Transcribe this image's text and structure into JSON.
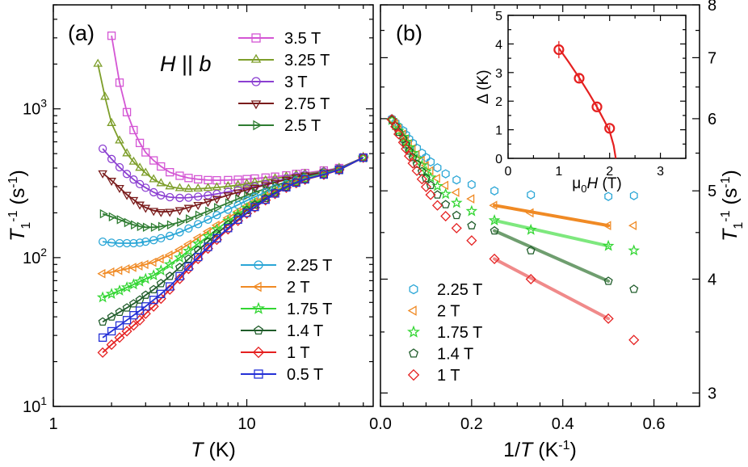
{
  "chart_data": [
    {
      "panel_label": "(a)",
      "type": "line",
      "annotation": "H || b",
      "xlabel": "T (K)",
      "ylabel": "T1^-1 (s^-1)",
      "x_scale": "log",
      "y_scale": "log",
      "xlim": [
        1,
        45
      ],
      "ylim": [
        10,
        5000
      ],
      "x_ticklabels": [
        "1",
        "10"
      ],
      "y_ticklabels": [
        "10^1",
        "10^2",
        "10^3"
      ],
      "series": [
        {
          "name": "3.5 T",
          "color": "#d456d4",
          "marker": "square",
          "x": [
            2.0,
            2.2,
            2.4,
            2.6,
            2.8,
            3.0,
            3.3,
            3.6,
            4.0,
            4.5,
            5.0,
            5.6,
            6.3,
            7.0,
            8.0,
            9.0,
            10,
            11,
            12.5,
            14,
            16,
            18,
            20,
            25,
            30,
            40
          ],
          "y": [
            3100,
            1500,
            950,
            720,
            590,
            510,
            450,
            410,
            375,
            355,
            343,
            336,
            332,
            331,
            332,
            334,
            337,
            340,
            345,
            350,
            357,
            365,
            370,
            385,
            400,
            470
          ]
        },
        {
          "name": "3.25 T",
          "color": "#7d9e2a",
          "marker": "triangle-up",
          "x": [
            1.7,
            1.85,
            2.0,
            2.2,
            2.4,
            2.6,
            2.8,
            3.0,
            3.3,
            3.6,
            4.0,
            4.5,
            5.0,
            5.6,
            6.3,
            7.0,
            8.0,
            9.0,
            10,
            11,
            12.5,
            14,
            16,
            18,
            20,
            25,
            30,
            40
          ],
          "y": [
            2000,
            1200,
            800,
            610,
            500,
            440,
            400,
            370,
            335,
            315,
            300,
            292,
            289,
            290,
            293,
            296,
            301,
            307,
            313,
            320,
            330,
            340,
            350,
            360,
            365,
            380,
            400,
            470
          ]
        },
        {
          "name": "3 T",
          "color": "#8b3fd1",
          "marker": "circle",
          "x": [
            1.8,
            2.0,
            2.2,
            2.4,
            2.6,
            2.8,
            3.0,
            3.3,
            3.6,
            4.0,
            4.5,
            5.0,
            5.6,
            6.3,
            7.0,
            8.0,
            9.0,
            10,
            11,
            12.5,
            14,
            16,
            18,
            20,
            25,
            30,
            40
          ],
          "y": [
            540,
            460,
            405,
            365,
            335,
            312,
            295,
            275,
            262,
            255,
            252,
            253,
            257,
            262,
            268,
            277,
            285,
            292,
            300,
            312,
            325,
            340,
            352,
            360,
            378,
            398,
            470
          ]
        },
        {
          "name": "2.75 T",
          "color": "#7a1c1c",
          "marker": "triangle-down",
          "x": [
            1.8,
            2.0,
            2.2,
            2.4,
            2.6,
            2.8,
            3.0,
            3.3,
            3.6,
            4.0,
            4.5,
            5.0,
            5.6,
            6.3,
            7.0,
            8.0,
            9.0,
            10,
            11,
            12.5,
            14,
            16,
            18,
            20,
            25,
            30,
            40
          ],
          "y": [
            370,
            330,
            295,
            265,
            245,
            228,
            217,
            207,
            203,
            204,
            209,
            217,
            227,
            238,
            249,
            263,
            275,
            285,
            295,
            308,
            320,
            335,
            348,
            358,
            375,
            395,
            470
          ]
        },
        {
          "name": "2.5 T",
          "color": "#2f7d32",
          "marker": "triangle-right",
          "x": [
            1.8,
            2.0,
            2.2,
            2.4,
            2.6,
            2.8,
            3.0,
            3.3,
            3.6,
            4.0,
            4.5,
            5.0,
            5.6,
            6.3,
            7.0,
            8.0,
            9.0,
            10,
            11,
            12.5,
            14,
            16,
            18,
            20,
            25,
            30,
            40
          ],
          "y": [
            197,
            188,
            180,
            172,
            166,
            162,
            160,
            160,
            162,
            166,
            173,
            182,
            193,
            205,
            217,
            233,
            248,
            262,
            275,
            290,
            305,
            322,
            337,
            350,
            370,
            393,
            470
          ]
        },
        {
          "name": "2.25 T",
          "color": "#2aa6d6",
          "marker": "circle",
          "x": [
            1.8,
            2.0,
            2.2,
            2.4,
            2.6,
            2.8,
            3.0,
            3.3,
            3.6,
            4.0,
            4.5,
            5.0,
            5.6,
            6.3,
            7.0,
            8.0,
            9.0,
            10,
            11,
            12.5,
            14,
            16,
            18,
            20,
            25,
            30,
            40
          ],
          "y": [
            128,
            126,
            125,
            125,
            125,
            126,
            128,
            131,
            135,
            140,
            148,
            157,
            168,
            180,
            193,
            210,
            226,
            242,
            256,
            275,
            292,
            312,
            330,
            343,
            367,
            392,
            470
          ]
        },
        {
          "name": "2 T",
          "color": "#f08a24",
          "marker": "triangle-left",
          "x": [
            1.8,
            2.0,
            2.2,
            2.4,
            2.6,
            2.8,
            3.0,
            3.3,
            3.6,
            4.0,
            4.5,
            5.0,
            5.6,
            6.3,
            7.0,
            8.0,
            9.0,
            10,
            11,
            12.5,
            14,
            16,
            18,
            20,
            25,
            30,
            40
          ],
          "y": [
            78,
            80,
            82,
            84,
            86,
            88,
            90,
            93,
            98,
            104,
            113,
            123,
            136,
            150,
            165,
            185,
            204,
            222,
            238,
            260,
            280,
            305,
            325,
            340,
            365,
            390,
            470
          ]
        },
        {
          "name": "1.75 T",
          "color": "#33d633",
          "marker": "star",
          "x": [
            1.8,
            2.0,
            2.2,
            2.4,
            2.6,
            2.8,
            3.0,
            3.3,
            3.6,
            4.0,
            4.5,
            5.0,
            5.6,
            6.3,
            7.0,
            8.0,
            9.0,
            10,
            11,
            12.5,
            14,
            16,
            18,
            20,
            25,
            30,
            40
          ],
          "y": [
            54,
            57,
            60,
            63,
            66,
            69,
            72,
            76,
            82,
            90,
            100,
            111,
            124,
            139,
            155,
            176,
            196,
            215,
            232,
            255,
            277,
            302,
            322,
            338,
            364,
            390,
            470
          ]
        },
        {
          "name": "1.4 T",
          "color": "#1f5c2a",
          "marker": "pentagon",
          "x": [
            1.8,
            2.0,
            2.2,
            2.4,
            2.6,
            2.8,
            3.0,
            3.3,
            3.6,
            4.0,
            4.5,
            5.0,
            5.6,
            6.3,
            7.0,
            8.0,
            9.0,
            10,
            11,
            12.5,
            14,
            16,
            18,
            20,
            25,
            30,
            40
          ],
          "y": [
            37,
            40,
            43,
            46,
            49,
            52,
            56,
            61,
            67,
            75,
            86,
            98,
            112,
            128,
            145,
            167,
            188,
            208,
            226,
            250,
            273,
            299,
            320,
            336,
            362,
            389,
            470
          ]
        },
        {
          "name": "1 T",
          "color": "#e52020",
          "marker": "diamond",
          "x": [
            1.8,
            2.0,
            2.2,
            2.4,
            2.6,
            2.8,
            3.0,
            3.3,
            3.6,
            4.0,
            4.5,
            5.0,
            5.6,
            6.3,
            7.0,
            8.0,
            9.0,
            10,
            11,
            12.5,
            14,
            16,
            18,
            20,
            25,
            30,
            40
          ],
          "y": [
            23,
            26,
            29,
            32,
            35,
            38,
            42,
            47,
            53,
            61,
            72,
            84,
            98,
            115,
            132,
            155,
            177,
            198,
            217,
            243,
            268,
            295,
            317,
            334,
            361,
            388,
            470
          ]
        },
        {
          "name": "0.5 T",
          "color": "#2430d6",
          "marker": "square",
          "x": [
            1.8,
            2.0,
            2.2,
            2.4,
            2.6,
            2.8,
            3.0,
            3.3,
            3.6,
            4.0,
            4.5,
            5.0,
            5.6,
            6.3,
            7.0,
            8.0,
            9.0,
            10,
            11,
            12.5,
            14,
            16,
            18,
            20,
            25,
            30,
            40
          ],
          "y": [
            29,
            32,
            35,
            38,
            41,
            44,
            47,
            52,
            57,
            64,
            75,
            87,
            101,
            118,
            135,
            158,
            180,
            200,
            219,
            245,
            270,
            297,
            319,
            336,
            362,
            389,
            470
          ]
        }
      ]
    },
    {
      "panel_label": "(b)",
      "type": "scatter",
      "xlabel": "1/T (K^-1)",
      "ylabel": "T1^-1 (s^-1)",
      "xlim": [
        0.0,
        0.7
      ],
      "x_ticklabels": [
        "0.0",
        "0.2",
        "0.4",
        "0.6"
      ],
      "y_ticklabels": [
        "3",
        "4",
        "5",
        "6",
        "7",
        "8"
      ],
      "ylim": [
        2.9,
        8.0
      ],
      "series": [
        {
          "name": "2.25 T",
          "color": "#2aa6d6",
          "marker": "hexagon",
          "x": [
            0.025,
            0.033,
            0.04,
            0.05,
            0.056,
            0.063,
            0.071,
            0.08,
            0.091,
            0.1,
            0.11,
            0.125,
            0.143,
            0.167,
            0.2,
            0.25,
            0.33,
            0.5,
            0.556
          ],
          "y": [
            6.0,
            5.94,
            5.88,
            5.82,
            5.76,
            5.7,
            5.64,
            5.57,
            5.5,
            5.44,
            5.38,
            5.3,
            5.22,
            5.14,
            5.08,
            5.0,
            4.95,
            4.93,
            4.94
          ]
        },
        {
          "name": "2 T",
          "color": "#f08a24",
          "marker": "triangle-left",
          "x": [
            0.025,
            0.033,
            0.04,
            0.05,
            0.056,
            0.063,
            0.071,
            0.08,
            0.091,
            0.1,
            0.11,
            0.125,
            0.143,
            0.167,
            0.2,
            0.25,
            0.33,
            0.5,
            0.556
          ],
          "y": [
            5.98,
            5.92,
            5.85,
            5.77,
            5.7,
            5.63,
            5.56,
            5.48,
            5.4,
            5.33,
            5.26,
            5.16,
            5.07,
            4.98,
            4.9,
            4.82,
            4.73,
            4.58,
            4.58
          ]
        },
        {
          "name": "1.75 T",
          "color": "#33d633",
          "marker": "star",
          "x": [
            0.025,
            0.033,
            0.04,
            0.05,
            0.056,
            0.063,
            0.071,
            0.08,
            0.091,
            0.1,
            0.11,
            0.125,
            0.143,
            0.167,
            0.2,
            0.25,
            0.33,
            0.5,
            0.556
          ],
          "y": [
            5.98,
            5.9,
            5.82,
            5.73,
            5.66,
            5.58,
            5.5,
            5.42,
            5.33,
            5.25,
            5.17,
            5.06,
            4.96,
            4.85,
            4.75,
            4.64,
            4.53,
            4.35,
            4.3
          ]
        },
        {
          "name": "1.4 T",
          "color": "#1f5c2a",
          "marker": "pentagon",
          "x": [
            0.025,
            0.033,
            0.04,
            0.05,
            0.056,
            0.063,
            0.071,
            0.08,
            0.091,
            0.1,
            0.11,
            0.125,
            0.143,
            0.167,
            0.2,
            0.25,
            0.33,
            0.5,
            0.556
          ],
          "y": [
            5.98,
            5.89,
            5.8,
            5.7,
            5.62,
            5.53,
            5.44,
            5.35,
            5.25,
            5.16,
            5.07,
            4.95,
            4.83,
            4.7,
            4.58,
            4.52,
            4.3,
            3.98,
            3.9
          ]
        },
        {
          "name": "1 T",
          "color": "#e52020",
          "marker": "diamond",
          "x": [
            0.025,
            0.033,
            0.04,
            0.05,
            0.056,
            0.063,
            0.071,
            0.08,
            0.091,
            0.1,
            0.11,
            0.125,
            0.143,
            0.167,
            0.2,
            0.25,
            0.33,
            0.5,
            0.556
          ],
          "y": [
            5.99,
            5.88,
            5.77,
            5.65,
            5.56,
            5.46,
            5.36,
            5.26,
            5.15,
            5.05,
            4.95,
            4.82,
            4.69,
            4.55,
            4.41,
            4.21,
            4.0,
            3.62,
            3.43
          ]
        }
      ],
      "fits": [
        {
          "name": "2 T",
          "color": "#f08a24",
          "x": [
            0.25,
            0.5
          ],
          "y": [
            4.82,
            4.58
          ]
        },
        {
          "name": "1.75 T",
          "color": "#7ee87e",
          "x": [
            0.25,
            0.5
          ],
          "y": [
            4.64,
            4.35
          ]
        },
        {
          "name": "1.4 T",
          "color": "#6f9e6f",
          "x": [
            0.25,
            0.5
          ],
          "y": [
            4.52,
            3.98
          ]
        },
        {
          "name": "1 T",
          "color": "#f08a8a",
          "x": [
            0.25,
            0.5
          ],
          "y": [
            4.21,
            3.62
          ]
        }
      ]
    },
    {
      "panel_label": "inset",
      "type": "scatter",
      "xlabel": "μ0H (T)",
      "ylabel": "Δ (K)",
      "xlim": [
        0,
        3.5
      ],
      "ylim": [
        0,
        5
      ],
      "x_ticklabels": [
        "0",
        "1",
        "2",
        "3"
      ],
      "y_ticklabels": [
        "0",
        "1",
        "2",
        "3",
        "4",
        "5"
      ],
      "points": {
        "color": "#e52020",
        "x": [
          1.0,
          1.4,
          1.75,
          2.0
        ],
        "y": [
          3.8,
          2.8,
          1.8,
          1.05
        ],
        "yerr": [
          0.3,
          0.15,
          0.1,
          0.1
        ]
      },
      "fit": {
        "color": "#e52020",
        "x": [
          1.0,
          1.2,
          1.4,
          1.6,
          1.75,
          1.9,
          2.0,
          2.08,
          2.12
        ],
        "y": [
          3.85,
          3.35,
          2.82,
          2.25,
          1.8,
          1.3,
          0.95,
          0.45,
          0.0
        ]
      }
    }
  ]
}
